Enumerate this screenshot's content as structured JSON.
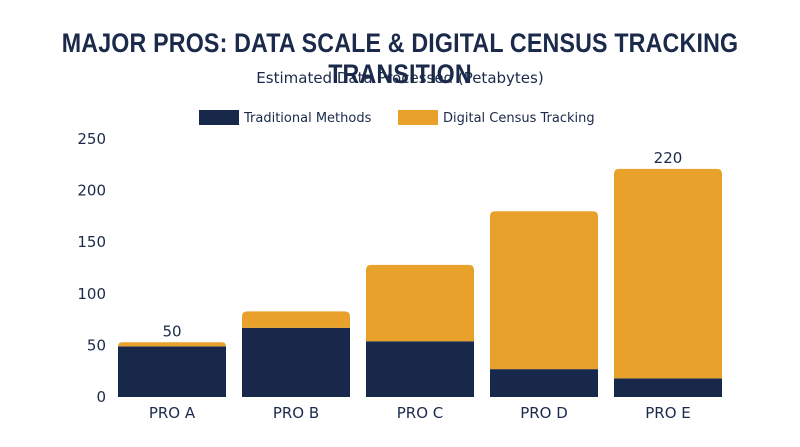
{
  "chart_data": {
    "type": "bar",
    "stacked": true,
    "title": "MAJOR PROS: DATA SCALE & DIGITAL CENSUS TRACKING TRANSITION",
    "subtitle": "Estimated Data Processed (Petabytes)",
    "xlabel": "",
    "ylabel": "",
    "categories": [
      "PRO A",
      "PRO B",
      "PRO C",
      "PRO D",
      "PRO E"
    ],
    "series": [
      {
        "name": "Traditional Methods",
        "color": "#17284b",
        "values": [
          49,
          67,
          54,
          27,
          18
        ]
      },
      {
        "name": "Digital Census Tracking",
        "color": "#e8a22b",
        "values": [
          4,
          16,
          74,
          153,
          203
        ]
      }
    ],
    "data_labels": [
      {
        "category": "PRO A",
        "text": "50"
      },
      {
        "category": "PRO E",
        "text": "220"
      }
    ],
    "ylim": [
      0,
      250
    ],
    "yticks": [
      0,
      50,
      100,
      150,
      200,
      250
    ],
    "grid": false,
    "legend_position": "top-center"
  }
}
